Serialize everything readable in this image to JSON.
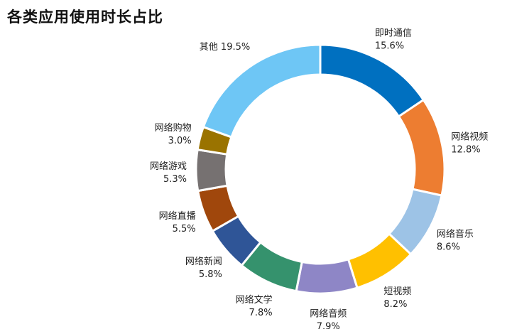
{
  "chart_data": {
    "type": "pie",
    "variant": "donut",
    "title": "各类应用使用时长占比",
    "slices": [
      {
        "label": "即时通信",
        "value": 15.6,
        "value_text": "15.6%",
        "color": "#0070C0"
      },
      {
        "label": "网络视频",
        "value": 12.8,
        "value_text": "12.8%",
        "color": "#ED7D31"
      },
      {
        "label": "网络音乐",
        "value": 8.6,
        "value_text": "8.6%",
        "color": "#9DC3E6"
      },
      {
        "label": "短视频",
        "value": 8.2,
        "value_text": "8.2%",
        "color": "#FFC000"
      },
      {
        "label": "网络音频",
        "value": 7.9,
        "value_text": "7.9%",
        "color": "#8E86C6"
      },
      {
        "label": "网络文学",
        "value": 7.8,
        "value_text": "7.8%",
        "color": "#35926D"
      },
      {
        "label": "网络新闻",
        "value": 5.8,
        "value_text": "5.8%",
        "color": "#2F5597"
      },
      {
        "label": "网络直播",
        "value": 5.5,
        "value_text": "5.5%",
        "color": "#A0470C"
      },
      {
        "label": "网络游戏",
        "value": 5.3,
        "value_text": "5.3%",
        "color": "#767171"
      },
      {
        "label": "网络购物",
        "value": 3.0,
        "value_text": "3.0%",
        "color": "#9A7300"
      },
      {
        "label": "其他",
        "value": 19.5,
        "value_text": "19.5%",
        "color": "#6EC6F5"
      }
    ],
    "legend": "none"
  }
}
